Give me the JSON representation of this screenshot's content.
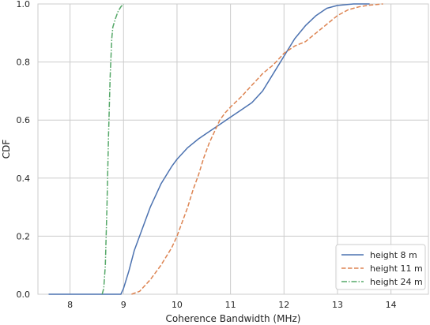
{
  "chart_data": {
    "type": "line",
    "title": "",
    "xlabel": "Coherence Bandwidth (MHz)",
    "ylabel": "CDF",
    "xlim": [
      7.4,
      14.7
    ],
    "ylim": [
      0.0,
      1.0
    ],
    "xticks": [
      8,
      9,
      10,
      11,
      12,
      13,
      14
    ],
    "yticks": [
      0.0,
      0.2,
      0.4,
      0.6,
      0.8,
      1.0
    ],
    "xtick_labels": [
      "8",
      "9",
      "10",
      "11",
      "12",
      "13",
      "14"
    ],
    "ytick_labels": [
      "0.0",
      "0.2",
      "0.4",
      "0.6",
      "0.8",
      "1.0"
    ],
    "grid": true,
    "legend_position": "bottom-right",
    "series": [
      {
        "name": "height 8 m",
        "color": "#4c72b0",
        "dash": "solid",
        "points": [
          [
            7.6,
            0.0
          ],
          [
            8.95,
            0.0
          ],
          [
            9.0,
            0.02
          ],
          [
            9.1,
            0.08
          ],
          [
            9.2,
            0.15
          ],
          [
            9.3,
            0.2
          ],
          [
            9.4,
            0.25
          ],
          [
            9.5,
            0.3
          ],
          [
            9.6,
            0.34
          ],
          [
            9.7,
            0.38
          ],
          [
            9.8,
            0.41
          ],
          [
            9.9,
            0.44
          ],
          [
            10.0,
            0.465
          ],
          [
            10.2,
            0.505
          ],
          [
            10.4,
            0.535
          ],
          [
            10.6,
            0.56
          ],
          [
            10.8,
            0.585
          ],
          [
            11.0,
            0.61
          ],
          [
            11.2,
            0.635
          ],
          [
            11.4,
            0.66
          ],
          [
            11.6,
            0.7
          ],
          [
            11.8,
            0.76
          ],
          [
            12.0,
            0.82
          ],
          [
            12.2,
            0.88
          ],
          [
            12.4,
            0.925
          ],
          [
            12.6,
            0.96
          ],
          [
            12.8,
            0.985
          ],
          [
            13.0,
            0.995
          ],
          [
            13.3,
            1.0
          ],
          [
            13.6,
            1.0
          ]
        ]
      },
      {
        "name": "height 11 m",
        "color": "#dd8452",
        "dash": "dashed",
        "points": [
          [
            9.15,
            0.0
          ],
          [
            9.3,
            0.01
          ],
          [
            9.4,
            0.03
          ],
          [
            9.5,
            0.05
          ],
          [
            9.6,
            0.075
          ],
          [
            9.7,
            0.1
          ],
          [
            9.8,
            0.13
          ],
          [
            9.9,
            0.16
          ],
          [
            10.0,
            0.2
          ],
          [
            10.1,
            0.25
          ],
          [
            10.2,
            0.3
          ],
          [
            10.3,
            0.36
          ],
          [
            10.4,
            0.41
          ],
          [
            10.5,
            0.47
          ],
          [
            10.6,
            0.52
          ],
          [
            10.7,
            0.56
          ],
          [
            10.8,
            0.6
          ],
          [
            10.9,
            0.625
          ],
          [
            11.0,
            0.645
          ],
          [
            11.2,
            0.68
          ],
          [
            11.4,
            0.72
          ],
          [
            11.6,
            0.76
          ],
          [
            11.8,
            0.79
          ],
          [
            12.0,
            0.83
          ],
          [
            12.2,
            0.855
          ],
          [
            12.4,
            0.87
          ],
          [
            12.6,
            0.9
          ],
          [
            12.8,
            0.93
          ],
          [
            13.0,
            0.96
          ],
          [
            13.2,
            0.98
          ],
          [
            13.4,
            0.99
          ],
          [
            13.6,
            0.996
          ],
          [
            13.85,
            1.0
          ]
        ]
      },
      {
        "name": "height 24 m",
        "color": "#55a868",
        "dash": "dashdot",
        "points": [
          [
            8.6,
            0.0
          ],
          [
            8.63,
            0.02
          ],
          [
            8.66,
            0.1
          ],
          [
            8.69,
            0.3
          ],
          [
            8.72,
            0.55
          ],
          [
            8.75,
            0.75
          ],
          [
            8.78,
            0.88
          ],
          [
            8.8,
            0.92
          ],
          [
            8.85,
            0.95
          ],
          [
            8.9,
            0.975
          ],
          [
            8.95,
            0.99
          ],
          [
            9.0,
            1.0
          ]
        ]
      }
    ]
  }
}
